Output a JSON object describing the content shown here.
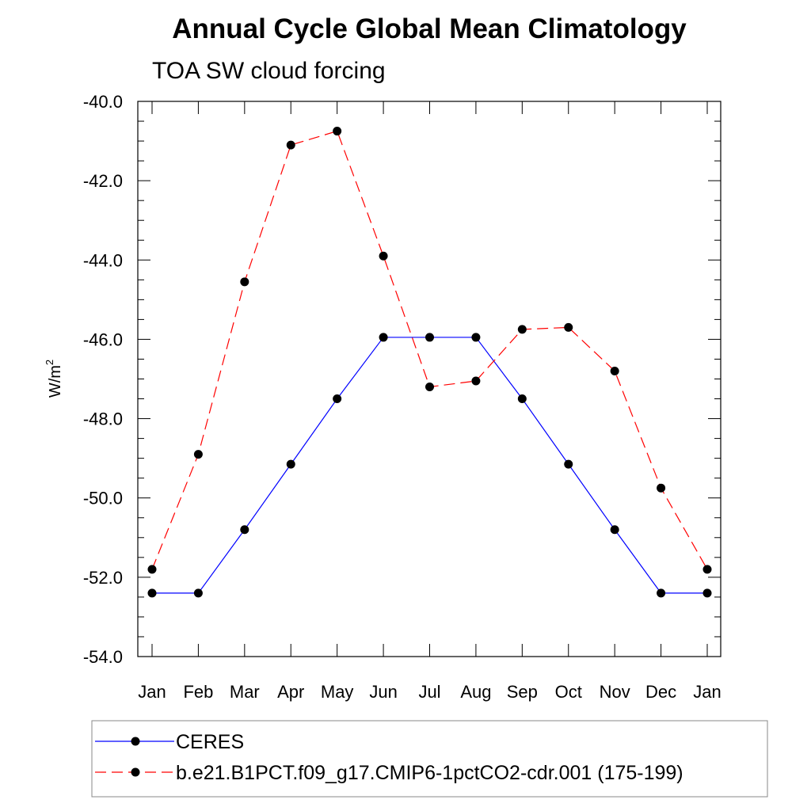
{
  "chart_data": {
    "type": "line",
    "title": "Annual Cycle Global Mean Climatology",
    "subtitle": "TOA SW cloud forcing",
    "xlabel": "",
    "ylabel": "W/m",
    "ylabel_superscript": "2",
    "categories": [
      "Jan",
      "Feb",
      "Mar",
      "Apr",
      "May",
      "Jun",
      "Jul",
      "Aug",
      "Sep",
      "Oct",
      "Nov",
      "Dec",
      "Jan"
    ],
    "ylim": [
      -54.0,
      -40.0
    ],
    "yticks": [
      -54.0,
      -52.0,
      -50.0,
      -48.0,
      -46.0,
      -44.0,
      -42.0,
      -40.0
    ],
    "ytick_labels": [
      "-54.0",
      "-52.0",
      "-50.0",
      "-48.0",
      "-46.0",
      "-44.0",
      "-42.0",
      "-40.0"
    ],
    "grid": false,
    "legend_position": "bottom",
    "series": [
      {
        "name": "CERES",
        "color": "#0000ff",
        "dash": "solid",
        "marker": "filled-circle",
        "values": [
          -52.4,
          -52.4,
          -50.8,
          -49.15,
          -47.5,
          -45.95,
          -45.95,
          -45.95,
          -47.5,
          -49.15,
          -50.8,
          -52.4,
          -52.4
        ]
      },
      {
        "name": "b.e21.B1PCT.f09_g17.CMIP6-1pctCO2-cdr.001 (175-199)",
        "color": "#ff0000",
        "dash": "dashed",
        "marker": "filled-circle",
        "values": [
          -51.8,
          -48.9,
          -44.55,
          -41.1,
          -40.75,
          -43.9,
          -47.2,
          -47.05,
          -45.75,
          -45.7,
          -46.8,
          -49.75,
          -51.8
        ]
      }
    ]
  }
}
